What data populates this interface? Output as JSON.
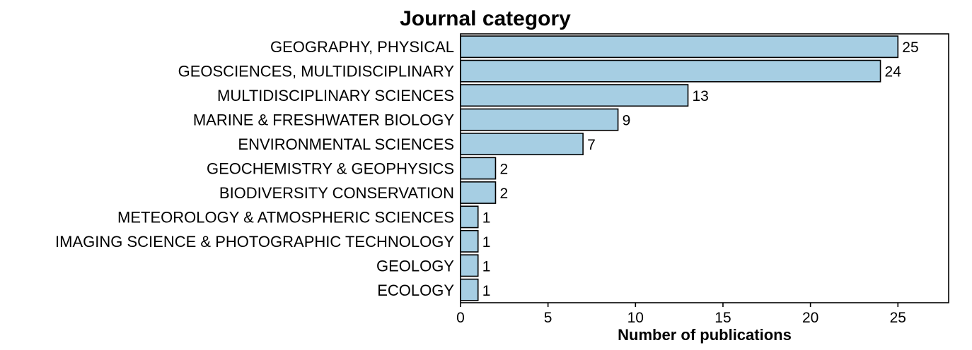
{
  "chart_data": {
    "type": "bar",
    "orientation": "horizontal",
    "title": "Journal category",
    "xlabel": "Number of publications",
    "ylabel": "",
    "xlim": [
      0,
      27.9
    ],
    "xticks": [
      0,
      5,
      10,
      15,
      20,
      25
    ],
    "grid": false,
    "legend": "none",
    "bar_color": "#a6cee3",
    "edge_color": "#000000",
    "categories": [
      "GEOGRAPHY, PHYSICAL",
      "GEOSCIENCES, MULTIDISCIPLINARY",
      "MULTIDISCIPLINARY SCIENCES",
      "MARINE & FRESHWATER BIOLOGY",
      "ENVIRONMENTAL SCIENCES",
      "GEOCHEMISTRY & GEOPHYSICS",
      "BIODIVERSITY CONSERVATION",
      "METEOROLOGY & ATMOSPHERIC SCIENCES",
      "IMAGING SCIENCE & PHOTOGRAPHIC TECHNOLOGY",
      "GEOLOGY",
      "ECOLOGY"
    ],
    "values": [
      25,
      24,
      13,
      9,
      7,
      2,
      2,
      1,
      1,
      1,
      1
    ]
  }
}
